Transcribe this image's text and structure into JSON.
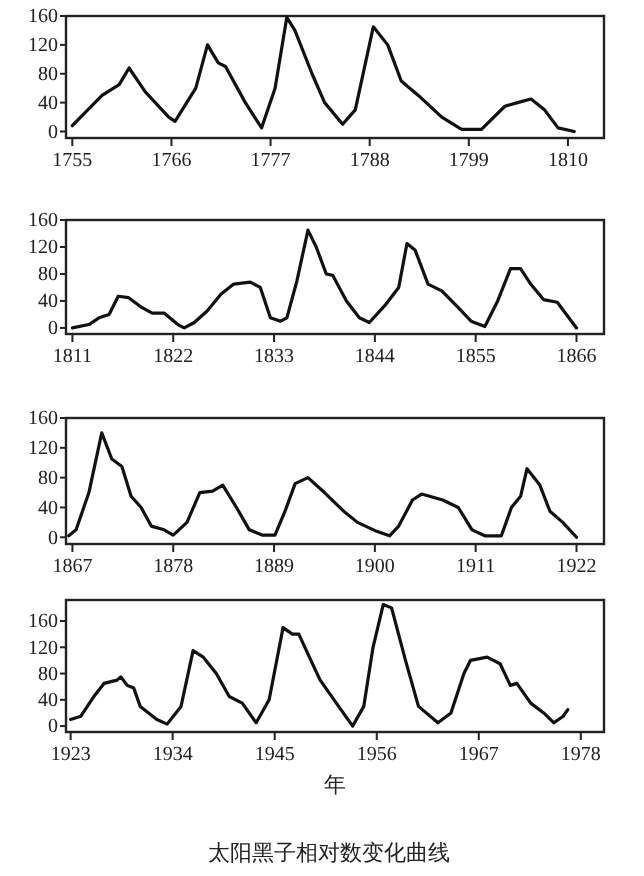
{
  "chart_data": [
    {
      "type": "line",
      "xlim": [
        1754.3,
        1814
      ],
      "xticks": [
        1755,
        1766,
        1777,
        1788,
        1799,
        1810
      ],
      "ylim": [
        -9,
        160
      ],
      "yticks": [
        0,
        40,
        80,
        120,
        160
      ],
      "grid": false,
      "marker": "none",
      "line_style": "solid",
      "series": [
        {
          "color": "#111111",
          "x": [
            1755,
            1758.3,
            1760.2,
            1761.3,
            1763.1,
            1765.7,
            1766.4,
            1768.7,
            1770,
            1771.2,
            1772,
            1774.2,
            1776,
            1777.5,
            1778.8,
            1779.7,
            1781.6,
            1783,
            1785,
            1786.4,
            1788.4,
            1790,
            1791.5,
            1793.4,
            1796,
            1798.2,
            1800.4,
            1803,
            1804.4,
            1805.9,
            1807.4,
            1808.9,
            1810.7
          ],
          "values": [
            8,
            50,
            65,
            88,
            55,
            20,
            14,
            60,
            120,
            95,
            90,
            40,
            5,
            60,
            158,
            140,
            80,
            40,
            10,
            30,
            145,
            120,
            70,
            50,
            20,
            3,
            3,
            35,
            40,
            45,
            30,
            5,
            0
          ]
        }
      ]
    },
    {
      "type": "line",
      "xlim": [
        1810.3,
        1869
      ],
      "xticks": [
        1811,
        1822,
        1833,
        1844,
        1855,
        1866
      ],
      "ylim": [
        -9,
        160
      ],
      "yticks": [
        0,
        40,
        80,
        120,
        160
      ],
      "grid": false,
      "marker": "none",
      "line_style": "solid",
      "series": [
        {
          "color": "#111111",
          "x": [
            1811,
            1812.8,
            1813.9,
            1815,
            1816,
            1817.1,
            1818.6,
            1819.7,
            1821,
            1822.5,
            1823.2,
            1824.3,
            1825.7,
            1827.2,
            1828.6,
            1830.4,
            1831.5,
            1832.6,
            1833.7,
            1834.4,
            1835.5,
            1836.7,
            1837.6,
            1838.7,
            1839.4,
            1840.9,
            1842.3,
            1843.4,
            1845.2,
            1846.6,
            1847.5,
            1848.4,
            1849.8,
            1851.3,
            1853.1,
            1854.5,
            1856,
            1857.4,
            1858.8,
            1859.9,
            1861,
            1862.4,
            1863.9,
            1864.9,
            1866
          ],
          "values": [
            0,
            5,
            15,
            20,
            47,
            45,
            30,
            22,
            22,
            5,
            0,
            8,
            25,
            50,
            65,
            68,
            60,
            15,
            10,
            15,
            70,
            145,
            120,
            80,
            78,
            40,
            15,
            8,
            35,
            60,
            125,
            115,
            65,
            55,
            30,
            10,
            2,
            40,
            88,
            88,
            65,
            42,
            38,
            20,
            0
          ]
        }
      ]
    },
    {
      "type": "line",
      "xlim": [
        1866.3,
        1925
      ],
      "xticks": [
        1867,
        1878,
        1889,
        1900,
        1911,
        1922
      ],
      "ylim": [
        -9,
        160
      ],
      "yticks": [
        0,
        40,
        80,
        120,
        160
      ],
      "grid": false,
      "marker": "none",
      "line_style": "solid",
      "series": [
        {
          "color": "#111111",
          "x": [
            1866.6,
            1867.4,
            1868.8,
            1870.2,
            1871.3,
            1872.4,
            1873.4,
            1874.5,
            1875.6,
            1877,
            1878,
            1879.5,
            1880.9,
            1882.3,
            1883.4,
            1884.9,
            1886.3,
            1887.7,
            1889.1,
            1890.2,
            1891.3,
            1892.7,
            1894.5,
            1896.6,
            1898.1,
            1900.2,
            1901.6,
            1902.6,
            1904.1,
            1905.1,
            1907.4,
            1909.1,
            1910.6,
            1912,
            1913.8,
            1914.9,
            1915.9,
            1916.6,
            1918,
            1919.1,
            1920.5,
            1922
          ],
          "values": [
            2,
            10,
            60,
            140,
            105,
            95,
            55,
            40,
            15,
            10,
            3,
            20,
            60,
            62,
            70,
            40,
            10,
            3,
            3,
            35,
            72,
            80,
            60,
            35,
            20,
            8,
            2,
            15,
            50,
            58,
            50,
            40,
            10,
            2,
            2,
            40,
            55,
            92,
            70,
            35,
            20,
            0
          ]
        }
      ]
    },
    {
      "type": "line",
      "title": "太阳黑子相对数变化曲线",
      "xlabel": "年",
      "xlim": [
        1922.5,
        1980.5
      ],
      "xticks": [
        1923,
        1934,
        1945,
        1956,
        1967,
        1978
      ],
      "ylim": [
        -9,
        192
      ],
      "yticks": [
        0,
        40,
        80,
        120,
        160
      ],
      "grid": false,
      "marker": "none",
      "line_style": "solid",
      "series": [
        {
          "color": "#111111",
          "x": [
            1923,
            1924.1,
            1925.5,
            1926.6,
            1928,
            1928.4,
            1929.1,
            1929.8,
            1930.5,
            1932.3,
            1933.4,
            1934.9,
            1936.2,
            1937.3,
            1938.7,
            1940.1,
            1941.5,
            1943,
            1944.4,
            1945.9,
            1946.9,
            1947.6,
            1948.9,
            1949.9,
            1951.4,
            1953.4,
            1954.6,
            1955.6,
            1956.7,
            1957.6,
            1959.1,
            1960.5,
            1962.6,
            1964,
            1965.4,
            1966.1,
            1967.9,
            1969.3,
            1970.4,
            1971.1,
            1972.6,
            1974,
            1975.1,
            1976.1,
            1976.6
          ],
          "values": [
            10,
            15,
            45,
            65,
            70,
            75,
            62,
            58,
            30,
            10,
            3,
            30,
            115,
            105,
            80,
            45,
            35,
            5,
            40,
            150,
            140,
            140,
            100,
            70,
            40,
            0,
            30,
            120,
            185,
            180,
            100,
            30,
            5,
            20,
            80,
            100,
            105,
            95,
            62,
            65,
            35,
            20,
            5,
            15,
            25
          ]
        }
      ]
    }
  ]
}
